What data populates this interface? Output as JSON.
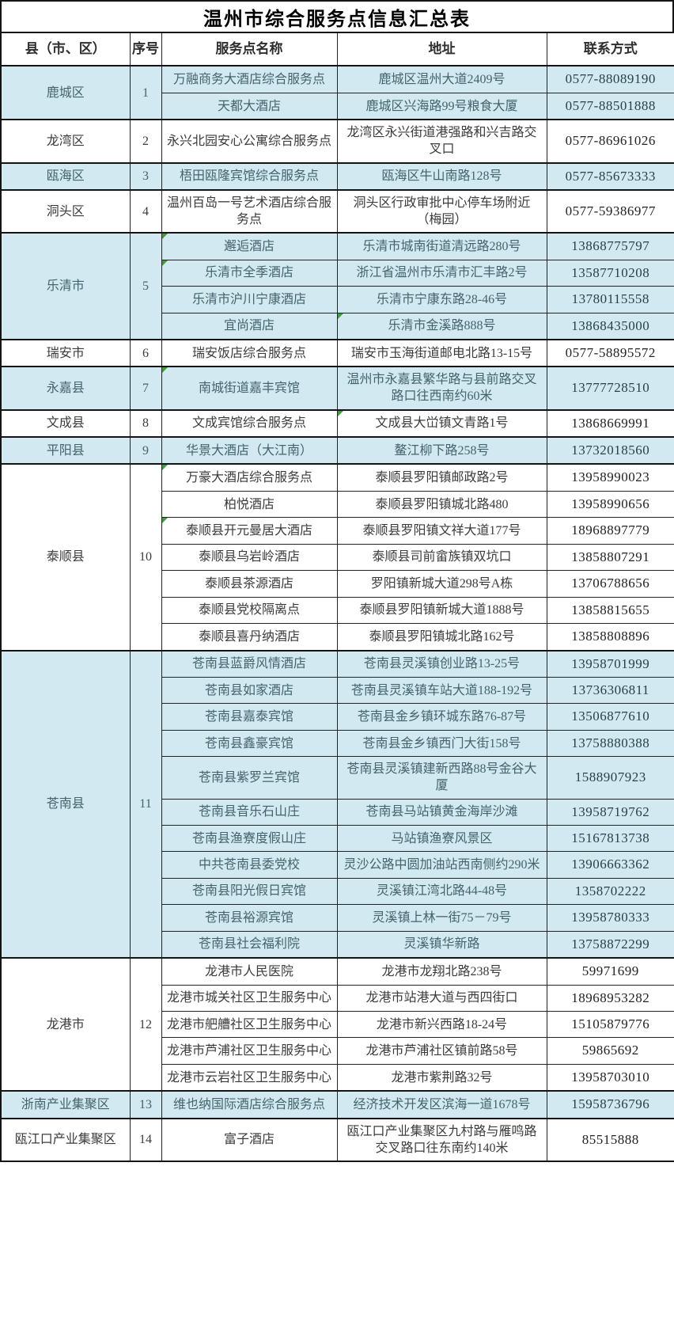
{
  "title": "温州市综合服务点信息汇总表",
  "columns": [
    "县（市、区）",
    "序号",
    "服务点名称",
    "地址",
    "联系方式"
  ],
  "colors": {
    "row_blue": "#d2e9f1",
    "row_white": "#ffffff",
    "border_black": "#141414",
    "text_white_rows": "#3b3b3b",
    "text_blue_rows": "#44636d",
    "comment_marker_green": "#3f9e3f",
    "title_text": "#000000"
  },
  "groups": [
    {
      "county": "鹿城区",
      "seq": "1",
      "shade": "blue",
      "rows": [
        {
          "name": "万融商务大酒店综合服务点",
          "addr": "鹿城区温州大道2409号",
          "tel": "0577-88089190"
        },
        {
          "name": "天都大酒店",
          "addr": "鹿城区兴海路99号粮食大厦",
          "tel": "0577-88501888"
        }
      ]
    },
    {
      "county": "龙湾区",
      "seq": "2",
      "shade": "white",
      "rows": [
        {
          "name": "永兴北园安心公寓综合服务点",
          "addr": "龙湾区永兴街道港强路和兴吉路交叉口",
          "tel": "0577-86961026"
        }
      ]
    },
    {
      "county": "瓯海区",
      "seq": "3",
      "shade": "blue",
      "rows": [
        {
          "name": "梧田瓯隆宾馆综合服务点",
          "addr": "瓯海区牛山南路128号",
          "tel": "0577-85673333"
        }
      ]
    },
    {
      "county": "洞头区",
      "seq": "4",
      "shade": "white",
      "rows": [
        {
          "name": "温州百岛一号艺术酒店综合服务点",
          "addr": "洞头区行政审批中心停车场附近（梅园）",
          "tel": "0577-59386977"
        }
      ]
    },
    {
      "county": "乐清市",
      "seq": "5",
      "shade": "blue",
      "rows": [
        {
          "name": "邂逅酒店",
          "addr": "乐清市城南街道清远路280号",
          "tel": "13868775797",
          "nm": true
        },
        {
          "name": "乐清市全季酒店",
          "addr": "浙江省温州市乐清市汇丰路2号",
          "tel": "13587710208",
          "nm": true
        },
        {
          "name": "乐清市沪川宁康酒店",
          "addr": "乐清市宁康东路28-46号",
          "tel": "13780115558"
        },
        {
          "name": "宜尚酒店",
          "addr": "乐清市金溪路888号",
          "tel": "13868435000",
          "am": true
        }
      ]
    },
    {
      "county": "瑞安市",
      "seq": "6",
      "shade": "white",
      "rows": [
        {
          "name": "瑞安饭店综合服务点",
          "addr": "瑞安市玉海街道邮电北路13-15号",
          "tel": "0577-58895572"
        }
      ]
    },
    {
      "county": "永嘉县",
      "seq": "7",
      "shade": "blue",
      "rows": [
        {
          "name": "南城街道嘉丰宾馆",
          "addr": "温州市永嘉县繁华路与县前路交叉路口往西南约60米",
          "tel": "13777728510",
          "nm": true
        }
      ]
    },
    {
      "county": "文成县",
      "seq": "8",
      "shade": "white",
      "rows": [
        {
          "name": "文成宾馆综合服务点",
          "addr": "文成县大峃镇文青路1号",
          "tel": "13868669991",
          "am": true
        }
      ]
    },
    {
      "county": "平阳县",
      "seq": "9",
      "shade": "blue",
      "rows": [
        {
          "name": "华景大酒店（大江南）",
          "addr": "鳌江柳下路258号",
          "tel": "13732018560"
        }
      ]
    },
    {
      "county": "泰顺县",
      "seq": "10",
      "shade": "white",
      "rows": [
        {
          "name": "万豪大酒店综合服务点",
          "addr": "泰顺县罗阳镇邮政路2号",
          "tel": "13958990023",
          "nm": true
        },
        {
          "name": "柏悦酒店",
          "addr": "泰顺县罗阳镇城北路480",
          "tel": "13958990656"
        },
        {
          "name": "泰顺县开元曼居大酒店",
          "addr": "泰顺县罗阳镇文祥大道177号",
          "tel": "18968897779",
          "nm": true
        },
        {
          "name": "泰顺县乌岩岭酒店",
          "addr": "泰顺县司前畲族镇双坑口",
          "tel": "13858807291"
        },
        {
          "name": "泰顺县茶源酒店",
          "addr": "罗阳镇新城大道298号A栋",
          "tel": "13706788656"
        },
        {
          "name": "泰顺县党校隔离点",
          "addr": "泰顺县罗阳镇新城大道1888号",
          "tel": "13858815655"
        },
        {
          "name": "泰顺县喜丹纳酒店",
          "addr": "泰顺县罗阳镇城北路162号",
          "tel": "13858808896"
        }
      ]
    },
    {
      "county": "苍南县",
      "seq": "11",
      "shade": "blue",
      "rows": [
        {
          "name": "苍南县蓝爵风情酒店",
          "addr": "苍南县灵溪镇创业路13-25号",
          "tel": "13958701999"
        },
        {
          "name": "苍南县如家酒店",
          "addr": "苍南县灵溪镇车站大道188-192号",
          "tel": "13736306811"
        },
        {
          "name": "苍南县嘉泰宾馆",
          "addr": "苍南县金乡镇环城东路76-87号",
          "tel": "13506877610"
        },
        {
          "name": "苍南县鑫豪宾馆",
          "addr": "苍南县金乡镇西门大街158号",
          "tel": "13758880388"
        },
        {
          "name": "苍南县紫罗兰宾馆",
          "addr": "苍南县灵溪镇建新西路88号金谷大厦",
          "tel": "1588907923"
        },
        {
          "name": "苍南县音乐石山庄",
          "addr": "苍南县马站镇黄金海岸沙滩",
          "tel": "13958719762"
        },
        {
          "name": "苍南县渔寮度假山庄",
          "addr": "马站镇渔寮风景区",
          "tel": "15167813738"
        },
        {
          "name": "中共苍南县委党校",
          "addr": "灵沙公路中圆加油站西南侧约290米",
          "tel": "13906663362"
        },
        {
          "name": "苍南县阳光假日宾馆",
          "addr": "灵溪镇江湾北路44-48号",
          "tel": "1358702222"
        },
        {
          "name": "苍南县裕源宾馆",
          "addr": "灵溪镇上林一街75－79号",
          "tel": "13958780333"
        },
        {
          "name": "苍南县社会福利院",
          "addr": "灵溪镇华新路",
          "tel": "13758872299"
        }
      ]
    },
    {
      "county": "龙港市",
      "seq": "12",
      "shade": "white",
      "rows": [
        {
          "name": "龙港市人民医院",
          "addr": "龙港市龙翔北路238号",
          "tel": "59971699"
        },
        {
          "name": "龙港市城关社区卫生服务中心",
          "addr": "龙港市站港大道与西四街口",
          "tel": "18968953282"
        },
        {
          "name": "龙港市舥艚社区卫生服务中心",
          "addr": "龙港市新兴西路18-24号",
          "tel": "15105879776"
        },
        {
          "name": "龙港市芦浦社区卫生服务中心",
          "addr": "龙港市芦浦社区镇前路58号",
          "tel": "59865692"
        },
        {
          "name": "龙港市云岩社区卫生服务中心",
          "addr": "龙港市紫荆路32号",
          "tel": "13958703010"
        }
      ]
    },
    {
      "county": "浙南产业集聚区",
      "seq": "13",
      "shade": "blue",
      "rows": [
        {
          "name": "维也纳国际酒店综合服务点",
          "addr": "经济技术开发区滨海一道1678号",
          "tel": "15958736796"
        }
      ]
    },
    {
      "county": "瓯江口产业集聚区",
      "seq": "14",
      "shade": "white",
      "rows": [
        {
          "name": "富子酒店",
          "addr": "瓯江口产业集聚区九村路与雁鸣路交叉路口往东南约140米",
          "tel": "85515888"
        }
      ]
    }
  ]
}
